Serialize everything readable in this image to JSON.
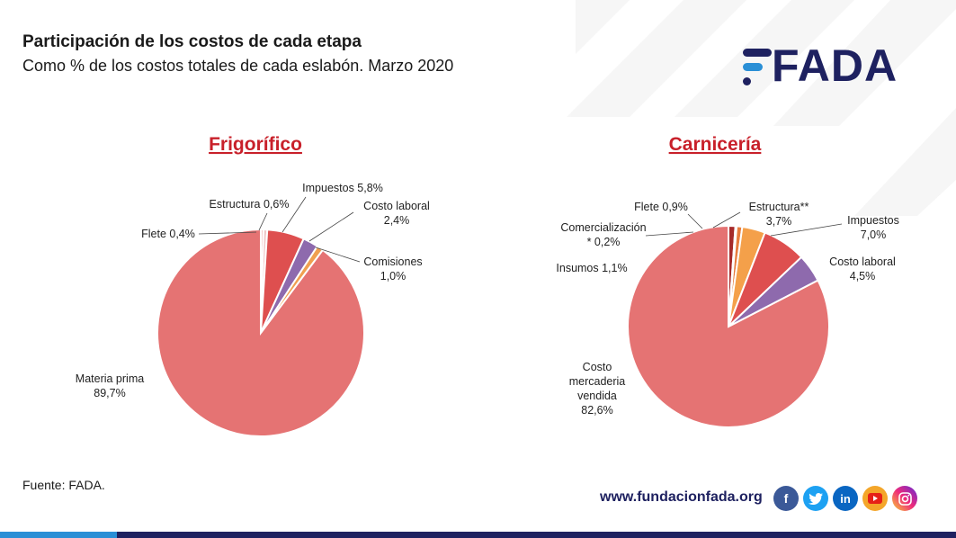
{
  "header": {
    "title": "Participación de los costos de cada etapa",
    "subtitle": "Como % de los costos totales de cada eslabón. Marzo 2020"
  },
  "logo": {
    "text": "FADA"
  },
  "footer": {
    "source": "Fuente: FADA.",
    "website": "www.fundacionfada.org",
    "social_icons": [
      "facebook-icon",
      "twitter-icon",
      "linkedin-icon",
      "youtube-icon",
      "instagram-icon"
    ]
  },
  "colors": {
    "title_red": "#c8202a",
    "brand_navy": "#1e2160",
    "facebook": "#3b5998",
    "twitter": "#1da1f2",
    "linkedin": "#0a66c2",
    "youtube": "#e62117",
    "instagram": "#d62976"
  },
  "chart_data": [
    {
      "type": "pie",
      "title": "Frigorífico",
      "slices": [
        {
          "label": "Materia prima",
          "value_text": "89,7%",
          "value": 89.7,
          "color": "#e57373"
        },
        {
          "label": "Flete",
          "value_text": "0,4%",
          "value": 0.4,
          "color": "#efb4b4"
        },
        {
          "label": "Estructura",
          "value_text": "0,6%",
          "value": 0.6,
          "color": "#f0c8c8"
        },
        {
          "label": "Impuestos",
          "value_text": "5,8%",
          "value": 5.8,
          "color": "#de4f4f"
        },
        {
          "label": "Costo laboral",
          "value_text": "2,4%",
          "value": 2.4,
          "color": "#8e6aad"
        },
        {
          "label": "Comisiones",
          "value_text": "1,0%",
          "value": 1.0,
          "color": "#f0a050"
        }
      ]
    },
    {
      "type": "pie",
      "title": "Carnicería",
      "slices": [
        {
          "label": "Costo mercaderia vendida",
          "value_text": "82,6%",
          "value": 82.6,
          "color": "#e57373"
        },
        {
          "label": "Insumos",
          "value_text": "1,1%",
          "value": 1.1,
          "color": "#a62b2b"
        },
        {
          "label": "Comercialización *",
          "value_text": "0,2%",
          "value": 0.2,
          "color": "#f2c7c7"
        },
        {
          "label": "Flete",
          "value_text": "0,9%",
          "value": 0.9,
          "color": "#e87d3e"
        },
        {
          "label": "Estructura**",
          "value_text": "3,7%",
          "value": 3.7,
          "color": "#f4a04a"
        },
        {
          "label": "Impuestos",
          "value_text": "7,0%",
          "value": 7.0,
          "color": "#de4f4f"
        },
        {
          "label": "Costo laboral",
          "value_text": "4,5%",
          "value": 4.5,
          "color": "#8e6aad"
        }
      ]
    }
  ]
}
